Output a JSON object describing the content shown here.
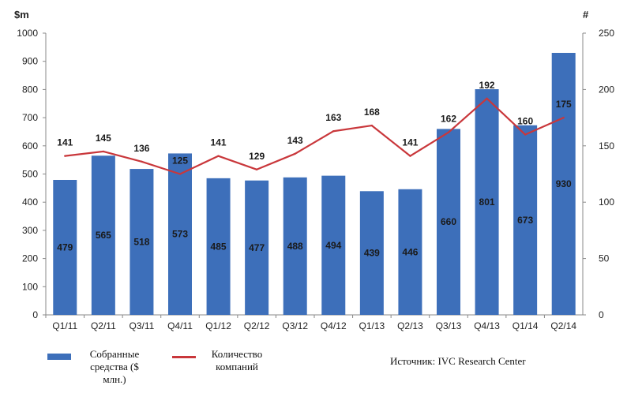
{
  "chart_data": {
    "type": "bar",
    "categories": [
      "Q1/11",
      "Q2/11",
      "Q3/11",
      "Q4/11",
      "Q1/12",
      "Q2/12",
      "Q3/12",
      "Q4/12",
      "Q1/13",
      "Q2/13",
      "Q3/13",
      "Q4/13",
      "Q1/14",
      "Q2/14"
    ],
    "series": [
      {
        "name": "Собранные средства ($ млн.)",
        "type": "bar",
        "axis": "left",
        "color": "#3d6fba",
        "values": [
          479,
          565,
          518,
          573,
          485,
          477,
          488,
          494,
          439,
          446,
          660,
          801,
          673,
          930
        ]
      },
      {
        "name": "Количество компаний",
        "type": "line",
        "axis": "right",
        "color": "#c9373b",
        "values": [
          141,
          145,
          136,
          125,
          141,
          129,
          143,
          163,
          168,
          141,
          162,
          192,
          160,
          175
        ]
      }
    ],
    "y_left": {
      "label": "$m",
      "ylim": [
        0,
        1000
      ],
      "ticks": [
        0,
        100,
        200,
        300,
        400,
        500,
        600,
        700,
        800,
        900,
        1000
      ]
    },
    "y_right": {
      "label": "#",
      "ylim": [
        0,
        250
      ],
      "ticks": [
        0,
        50,
        100,
        150,
        200,
        250
      ]
    },
    "legend": {
      "placement": "bottom-left",
      "bar_label_lines": [
        "Собранные",
        "средства ($",
        "млн.)"
      ],
      "line_label_lines": [
        "Количество",
        "компаний"
      ]
    },
    "source": "Источник: IVC Research Center",
    "grid": false
  }
}
